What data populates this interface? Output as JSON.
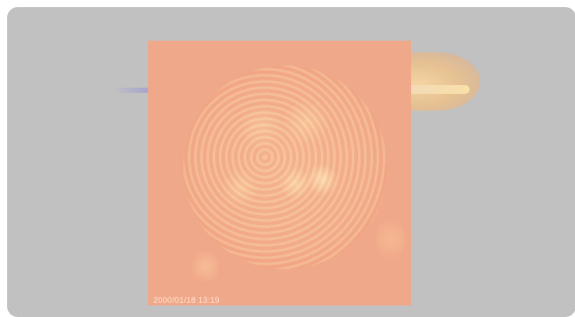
{
  "viewer": {
    "image_title": "",
    "timestamp": "2000/01/18 13:19"
  },
  "colors": {
    "backdrop": "#ffffff",
    "overlay": "#c1c1c1",
    "sun_tint": "#f0a88a",
    "flare": "#f7d6a0"
  }
}
